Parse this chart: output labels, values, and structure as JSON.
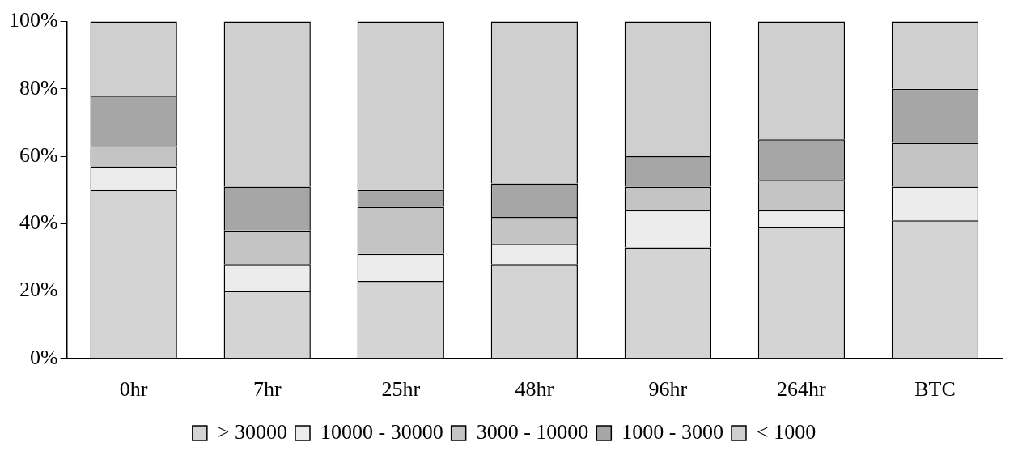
{
  "chart_data": {
    "type": "bar",
    "stacked": true,
    "categories": [
      "0hr",
      "7hr",
      "25hr",
      "48hr",
      "96hr",
      "264hr",
      "BTC"
    ],
    "series": [
      {
        "name": "> 30000",
        "color": "#d4d4d4",
        "values": [
          50,
          20,
          23,
          28,
          33,
          39,
          41
        ]
      },
      {
        "name": "10000 - 30000",
        "color": "#ececec",
        "values": [
          7,
          8,
          8,
          6,
          11,
          5,
          10
        ]
      },
      {
        "name": "3000 - 10000",
        "color": "#c4c4c4",
        "values": [
          6,
          10,
          14,
          8,
          7,
          9,
          13
        ]
      },
      {
        "name": "1000 - 3000",
        "color": "#a6a6a6",
        "values": [
          15,
          13,
          5,
          10,
          9,
          12,
          16
        ]
      },
      {
        "name": "< 1000",
        "color": "#cfcfcf",
        "values": [
          22,
          49,
          50,
          48,
          40,
          35,
          20
        ]
      }
    ],
    "ylim": [
      0,
      100
    ],
    "yticks": [
      {
        "value": 0,
        "label": "0%"
      },
      {
        "value": 20,
        "label": "20%"
      },
      {
        "value": 40,
        "label": "40%"
      },
      {
        "value": 60,
        "label": "60%"
      },
      {
        "value": 80,
        "label": "80%"
      },
      {
        "value": 100,
        "label": "100%"
      }
    ],
    "grid": false,
    "legend": "bottom"
  }
}
